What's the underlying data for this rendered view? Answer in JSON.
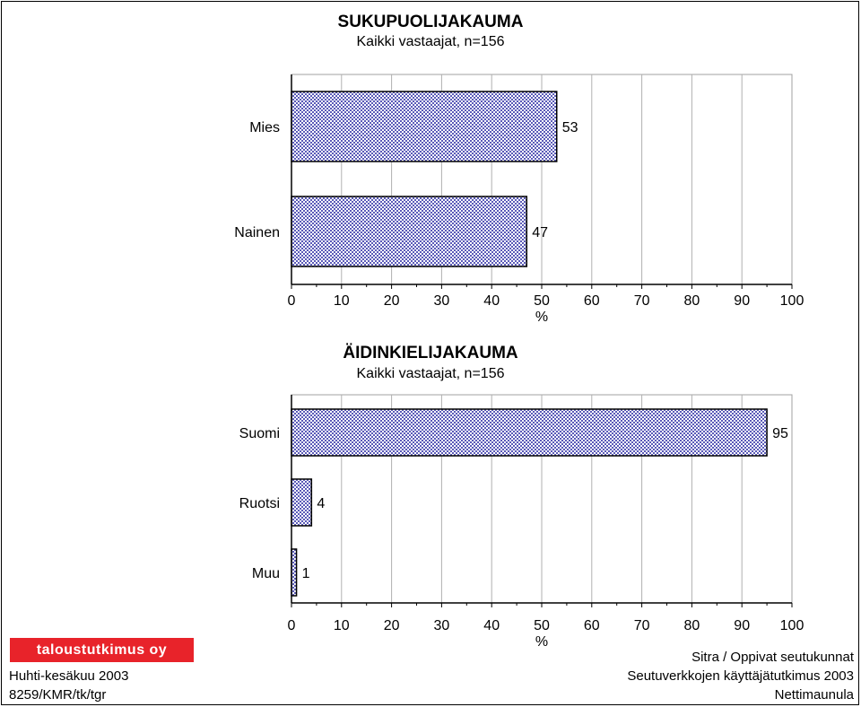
{
  "chart_data": [
    {
      "type": "bar",
      "orientation": "horizontal",
      "title": "SUKUPUOLIJAKAUMA",
      "subtitle": "Kaikki vastaajat, n=156",
      "categories": [
        "Mies",
        "Nainen"
      ],
      "values": [
        53,
        47
      ],
      "xlabel": "%",
      "xlim": [
        0,
        100
      ],
      "xticks": [
        "0",
        "10",
        "20",
        "30",
        "40",
        "50",
        "60",
        "70",
        "80",
        "90",
        "100"
      ],
      "grid": true,
      "bar_color": "#6060c0"
    },
    {
      "type": "bar",
      "orientation": "horizontal",
      "title": "ÄIDINKIELIJAKAUMA",
      "subtitle": "Kaikki vastaajat, n=156",
      "categories": [
        "Suomi",
        "Ruotsi",
        "Muu"
      ],
      "values": [
        95,
        4,
        1
      ],
      "xlabel": "%",
      "xlim": [
        0,
        100
      ],
      "xticks": [
        "0",
        "10",
        "20",
        "30",
        "40",
        "50",
        "60",
        "70",
        "80",
        "90",
        "100"
      ],
      "grid": true,
      "bar_color": "#6060c0"
    }
  ],
  "logo_text": "taloustutkimus oy",
  "footer": {
    "left_line1": "Huhti-kesäkuu 2003",
    "left_line2": "8259/KMR/tk/tgr",
    "right_line1": "Sitra / Oppivat seutukunnat",
    "right_line2": "Seutuverkkojen käyttäjätutkimus 2003",
    "right_line3": "Nettimaunula"
  }
}
